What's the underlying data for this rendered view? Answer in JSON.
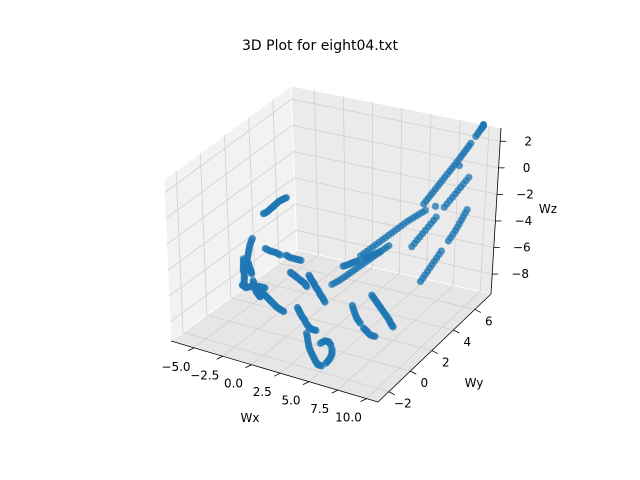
{
  "chart_data": {
    "type": "scatter",
    "projection": "3d",
    "title": "3D Plot for eight04.txt",
    "xlabel": "Wx",
    "ylabel": "Wy",
    "zlabel": "Wz",
    "xlim": [
      -7,
      11
    ],
    "ylim": [
      -3,
      7.5
    ],
    "zlim": [
      -9.5,
      3
    ],
    "xticks": [
      -5.0,
      -2.5,
      0.0,
      2.5,
      5.0,
      7.5,
      10.0
    ],
    "xtick_labels": [
      "−5.0",
      "−2.5",
      "0.0",
      "2.5",
      "5.0",
      "7.5",
      "10.0"
    ],
    "yticks": [
      -2,
      0,
      2,
      4,
      6
    ],
    "ytick_labels": [
      "−2",
      "0",
      "2",
      "4",
      "6"
    ],
    "zticks": [
      -8,
      -6,
      -4,
      -2,
      0,
      2
    ],
    "ztick_labels": [
      "−8",
      "−6",
      "−4",
      "−2",
      "0",
      "2"
    ],
    "grid": true,
    "marker_color": "#1f77b4",
    "series": [
      {
        "points": [
          [
            -5.8,
            3.8,
            -4.0
          ],
          [
            -5.6,
            3.9,
            -3.9
          ],
          [
            -5.4,
            4.0,
            -3.7
          ],
          [
            -5.2,
            4.1,
            -3.5
          ],
          [
            -5.0,
            4.1,
            -3.3
          ],
          [
            -4.8,
            4.2,
            -3.1
          ],
          [
            -4.6,
            4.3,
            -3.0
          ],
          [
            -4.4,
            4.4,
            -2.9
          ],
          [
            -6.0,
            3.0,
            -5.4
          ],
          [
            -5.8,
            2.6,
            -5.6
          ],
          [
            -5.5,
            2.2,
            -5.8
          ],
          [
            -5.2,
            1.8,
            -6.0
          ],
          [
            -4.9,
            1.6,
            -6.1
          ],
          [
            -4.6,
            1.4,
            -6.2
          ],
          [
            -4.3,
            1.2,
            -6.2
          ],
          [
            -4.0,
            1.0,
            -6.3
          ],
          [
            -6.2,
            2.4,
            -6.6
          ],
          [
            -6.0,
            2.2,
            -6.9
          ],
          [
            -5.8,
            2.0,
            -7.1
          ],
          [
            -5.5,
            1.8,
            -7.2
          ],
          [
            -5.2,
            1.5,
            -7.3
          ],
          [
            -4.9,
            1.2,
            -7.4
          ],
          [
            -4.6,
            1.0,
            -7.4
          ],
          [
            -4.3,
            0.8,
            -7.3
          ],
          [
            -4.0,
            0.2,
            -6.6
          ],
          [
            -3.6,
            0.0,
            -6.5
          ],
          [
            -3.2,
            -0.2,
            -6.3
          ],
          [
            -2.8,
            -0.3,
            -6.1
          ],
          [
            -2.4,
            -0.4,
            -5.9
          ],
          [
            -2.0,
            -0.4,
            -5.8
          ],
          [
            -1.6,
            -0.5,
            -5.7
          ],
          [
            -1.2,
            -0.6,
            -5.6
          ],
          [
            -3.8,
            2.0,
            -5.0
          ],
          [
            -3.4,
            2.0,
            -5.1
          ],
          [
            -3.0,
            2.1,
            -5.2
          ],
          [
            -2.6,
            2.1,
            -5.3
          ],
          [
            -2.2,
            2.2,
            -5.3
          ],
          [
            -1.8,
            2.2,
            -5.4
          ],
          [
            -1.4,
            2.3,
            -5.5
          ],
          [
            -1.0,
            2.3,
            -5.5
          ],
          [
            -3.0,
            0.8,
            -7.0
          ],
          [
            -2.6,
            0.6,
            -7.2
          ],
          [
            -2.2,
            0.5,
            -7.3
          ],
          [
            -1.8,
            0.4,
            -7.4
          ],
          [
            -1.4,
            0.3,
            -7.5
          ],
          [
            -1.0,
            0.2,
            -7.6
          ],
          [
            -0.6,
            0.1,
            -7.6
          ],
          [
            -0.2,
            0.0,
            -7.6
          ],
          [
            -5.5,
            2.5,
            -8.2
          ],
          [
            -5.2,
            2.3,
            -8.3
          ],
          [
            -4.9,
            2.1,
            -8.4
          ],
          [
            -4.6,
            1.9,
            -8.4
          ],
          [
            -4.3,
            1.7,
            -8.3
          ],
          [
            -4.0,
            1.5,
            -8.2
          ],
          [
            -3.7,
            1.3,
            -8.1
          ],
          [
            -3.4,
            1.1,
            -8.0
          ],
          [
            -0.6,
            1.0,
            -5.4
          ],
          [
            -0.2,
            0.8,
            -5.3
          ],
          [
            0.2,
            0.6,
            -5.2
          ],
          [
            0.6,
            0.4,
            -5.1
          ],
          [
            1.0,
            0.2,
            -5.0
          ],
          [
            1.4,
            0.0,
            -4.9
          ],
          [
            1.8,
            -0.2,
            -4.8
          ],
          [
            2.2,
            -0.4,
            -4.8
          ],
          [
            0.0,
            2.0,
            -6.2
          ],
          [
            0.4,
            1.8,
            -6.3
          ],
          [
            0.8,
            1.6,
            -6.3
          ],
          [
            1.2,
            1.4,
            -6.4
          ],
          [
            1.6,
            1.2,
            -6.4
          ],
          [
            2.0,
            1.0,
            -6.5
          ],
          [
            2.4,
            0.8,
            -6.5
          ],
          [
            2.8,
            0.6,
            -6.6
          ],
          [
            1.0,
            0.0,
            -7.0
          ],
          [
            1.4,
            -0.2,
            -7.1
          ],
          [
            1.8,
            -0.4,
            -7.2
          ],
          [
            2.2,
            -0.6,
            -7.2
          ],
          [
            2.6,
            -0.8,
            -7.3
          ],
          [
            3.0,
            -1.0,
            -7.3
          ],
          [
            3.4,
            -1.1,
            -7.3
          ],
          [
            3.8,
            -1.2,
            -7.2
          ],
          [
            2.0,
            3.0,
            -5.8
          ],
          [
            2.4,
            3.0,
            -5.6
          ],
          [
            2.8,
            3.1,
            -5.4
          ],
          [
            3.2,
            3.1,
            -5.2
          ],
          [
            3.6,
            3.2,
            -5.0
          ],
          [
            4.0,
            3.2,
            -4.8
          ],
          [
            4.4,
            3.3,
            -4.6
          ],
          [
            4.8,
            3.4,
            -4.4
          ],
          [
            3.0,
            1.0,
            -5.5
          ],
          [
            3.5,
            1.2,
            -5.2
          ],
          [
            4.0,
            1.4,
            -4.8
          ],
          [
            4.5,
            1.6,
            -4.4
          ],
          [
            5.0,
            1.8,
            -4.0
          ],
          [
            5.5,
            2.0,
            -3.6
          ],
          [
            6.0,
            2.2,
            -3.2
          ],
          [
            6.5,
            2.4,
            -2.8
          ],
          [
            4.0,
            2.5,
            -4.2
          ],
          [
            4.5,
            2.8,
            -3.8
          ],
          [
            5.0,
            3.1,
            -3.4
          ],
          [
            5.5,
            3.4,
            -3.0
          ],
          [
            6.0,
            3.7,
            -2.6
          ],
          [
            6.5,
            4.0,
            -2.2
          ],
          [
            7.0,
            4.3,
            -1.9
          ],
          [
            7.5,
            4.6,
            -1.6
          ],
          [
            5.0,
            0.8,
            -6.5
          ],
          [
            5.4,
            0.6,
            -6.8
          ],
          [
            5.8,
            0.4,
            -7.0
          ],
          [
            6.2,
            0.3,
            -7.2
          ],
          [
            6.6,
            0.2,
            -7.4
          ],
          [
            7.0,
            0.1,
            -7.5
          ],
          [
            7.4,
            0.0,
            -7.6
          ],
          [
            7.8,
            0.0,
            -7.6
          ],
          [
            6.0,
            1.5,
            -6.0
          ],
          [
            6.4,
            1.4,
            -6.2
          ],
          [
            6.8,
            1.3,
            -6.4
          ],
          [
            7.2,
            1.2,
            -6.6
          ],
          [
            7.6,
            1.1,
            -6.8
          ],
          [
            8.0,
            1.0,
            -7.0
          ],
          [
            8.3,
            0.9,
            -7.2
          ],
          [
            8.6,
            0.8,
            -7.3
          ],
          [
            3.0,
            -1.2,
            -7.6
          ],
          [
            3.3,
            -1.4,
            -7.9
          ],
          [
            3.6,
            -1.6,
            -8.2
          ],
          [
            3.9,
            -1.7,
            -8.5
          ],
          [
            4.2,
            -1.8,
            -8.7
          ],
          [
            4.5,
            -1.9,
            -8.9
          ],
          [
            4.8,
            -2.0,
            -9.0
          ],
          [
            5.1,
            -2.0,
            -9.0
          ],
          [
            5.4,
            -1.9,
            -8.8
          ],
          [
            5.6,
            -1.8,
            -8.5
          ],
          [
            5.7,
            -1.7,
            -8.2
          ],
          [
            5.6,
            -1.6,
            -7.9
          ],
          [
            5.4,
            -1.5,
            -7.7
          ],
          [
            5.1,
            -1.4,
            -7.6
          ],
          [
            4.8,
            -1.4,
            -7.6
          ],
          [
            4.5,
            -1.5,
            -7.8
          ],
          [
            6.5,
            5.5,
            -2.0
          ],
          [
            6.8,
            5.8,
            -1.5
          ],
          [
            7.1,
            6.1,
            -1.0
          ],
          [
            7.4,
            6.4,
            -0.5
          ],
          [
            7.7,
            6.7,
            0.0
          ],
          [
            8.0,
            7.0,
            0.5
          ],
          [
            8.3,
            7.2,
            1.0
          ],
          [
            8.6,
            7.4,
            1.5
          ],
          [
            8.9,
            7.5,
            2.0
          ],
          [
            9.2,
            7.6,
            2.5
          ],
          [
            9.4,
            7.6,
            2.8
          ],
          [
            9.5,
            7.5,
            3.0
          ],
          [
            7.0,
            4.0,
            -4.0
          ],
          [
            7.3,
            4.4,
            -3.5
          ],
          [
            7.6,
            4.8,
            -3.0
          ],
          [
            7.9,
            5.2,
            -2.5
          ],
          [
            8.2,
            5.6,
            -2.0
          ],
          [
            8.5,
            6.0,
            -1.5
          ],
          [
            8.8,
            6.4,
            -1.0
          ],
          [
            9.1,
            6.8,
            -0.5
          ],
          [
            8.8,
            3.0,
            -5.5
          ],
          [
            9.0,
            3.4,
            -5.0
          ],
          [
            9.2,
            3.8,
            -4.5
          ],
          [
            9.4,
            4.2,
            -4.0
          ],
          [
            9.6,
            4.6,
            -3.5
          ],
          [
            9.8,
            5.0,
            -3.0
          ],
          [
            9.9,
            5.4,
            -2.5
          ],
          [
            10.0,
            5.8,
            -2.0
          ]
        ]
      }
    ]
  }
}
